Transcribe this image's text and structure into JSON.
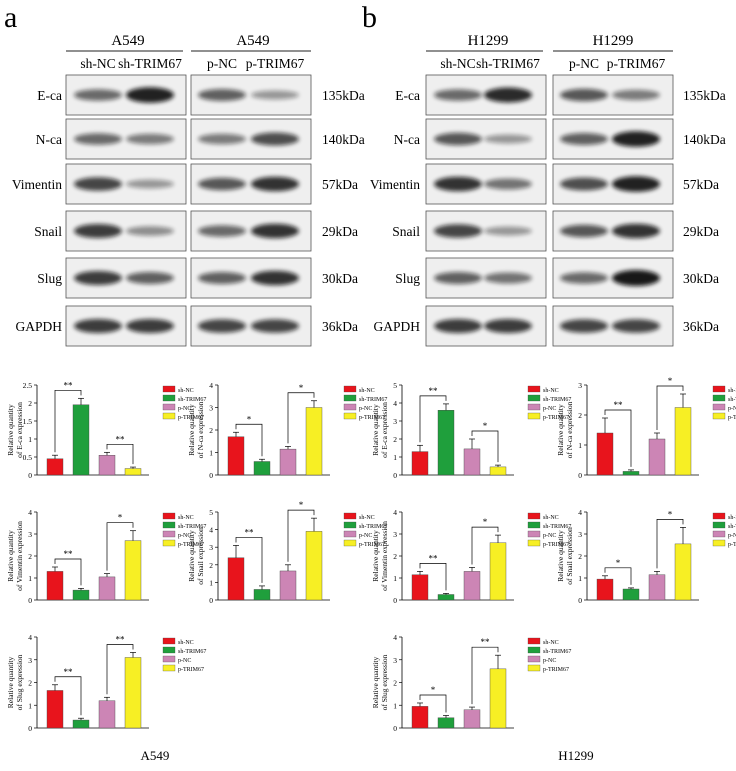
{
  "panels": [
    {
      "letter": "a",
      "cell_line": "A549",
      "groups": [
        {
          "title": "A549",
          "lanes": [
            "sh-NC",
            "sh-TRIM67"
          ]
        },
        {
          "title": "A549",
          "lanes": [
            "p-NC",
            "p-TRIM67"
          ]
        }
      ],
      "blots": [
        {
          "protein": "E-ca",
          "size": "135kDa",
          "intensities": [
            0.55,
            0.95,
            0.6,
            0.3
          ]
        },
        {
          "protein": "N-ca",
          "size": "140kDa",
          "intensities": [
            0.55,
            0.45,
            0.45,
            0.7
          ]
        },
        {
          "protein": "Vimentin",
          "size": "57kDa",
          "intensities": [
            0.75,
            0.3,
            0.65,
            0.85
          ]
        },
        {
          "protein": "Snail",
          "size": "29kDa",
          "intensities": [
            0.8,
            0.35,
            0.55,
            0.85
          ]
        },
        {
          "protein": "Slug",
          "size": "30kDa",
          "intensities": [
            0.8,
            0.6,
            0.6,
            0.85
          ]
        },
        {
          "protein": "GAPDH",
          "size": "36kDa",
          "intensities": [
            0.8,
            0.8,
            0.75,
            0.75
          ]
        }
      ]
    },
    {
      "letter": "b",
      "cell_line": "H1299",
      "groups": [
        {
          "title": "H1299",
          "lanes": [
            "sh-NC",
            "sh-TRIM67"
          ]
        },
        {
          "title": "H1299",
          "lanes": [
            "p-NC",
            "p-TRIM67"
          ]
        }
      ],
      "blots": [
        {
          "protein": "E-ca",
          "size": "135kDa",
          "intensities": [
            0.55,
            0.9,
            0.65,
            0.45
          ]
        },
        {
          "protein": "N-ca",
          "size": "140kDa",
          "intensities": [
            0.65,
            0.3,
            0.6,
            0.95
          ]
        },
        {
          "protein": "Vimentin",
          "size": "57kDa",
          "intensities": [
            0.85,
            0.5,
            0.7,
            0.95
          ]
        },
        {
          "protein": "Snail",
          "size": "29kDa",
          "intensities": [
            0.75,
            0.3,
            0.65,
            0.85
          ]
        },
        {
          "protein": "Slug",
          "size": "30kDa",
          "intensities": [
            0.6,
            0.5,
            0.55,
            1.0
          ]
        },
        {
          "protein": "GAPDH",
          "size": "36kDa",
          "intensities": [
            0.8,
            0.8,
            0.75,
            0.75
          ]
        }
      ]
    }
  ],
  "legend": [
    "sh-NC",
    "sh-TRIM67",
    "p-NC",
    "p-TRIM67"
  ],
  "colors": [
    "#e8141c",
    "#1f9f3c",
    "#cc85b5",
    "#f7ef24"
  ],
  "chart_data": [
    {
      "type": "bar",
      "panel": "a",
      "categories": [
        "sh-NC",
        "sh-TRIM67",
        "p-NC",
        "p-TRIM67"
      ],
      "values": [
        0.45,
        1.95,
        0.55,
        0.18
      ],
      "errors": [
        0.1,
        0.18,
        0.08,
        0.04
      ],
      "ylabel": "Relative quantity of E-ca expression",
      "ylim": [
        0,
        2.5
      ],
      "yticks": [
        0,
        0.5,
        1,
        1.5,
        2,
        2.5
      ],
      "sig": [
        "**",
        "**"
      ],
      "legend_position": "right"
    },
    {
      "type": "bar",
      "panel": "a",
      "categories": [
        "sh-NC",
        "sh-TRIM67",
        "p-NC",
        "p-TRIM67"
      ],
      "values": [
        1.7,
        0.6,
        1.15,
        3.0
      ],
      "errors": [
        0.2,
        0.1,
        0.12,
        0.3
      ],
      "ylabel": "Relative quantity of N-ca expression",
      "ylim": [
        0,
        4
      ],
      "yticks": [
        0,
        1,
        2,
        3,
        4
      ],
      "sig": [
        "*",
        "*"
      ],
      "legend_position": "right"
    },
    {
      "type": "bar",
      "panel": "a",
      "categories": [
        "sh-NC",
        "sh-TRIM67",
        "p-NC",
        "p-TRIM67"
      ],
      "values": [
        1.3,
        0.45,
        1.05,
        2.7
      ],
      "errors": [
        0.2,
        0.08,
        0.15,
        0.45
      ],
      "ylabel": "Relative quantity of Vimentin expression",
      "ylim": [
        0,
        4
      ],
      "yticks": [
        0,
        1,
        2,
        3,
        4
      ],
      "sig": [
        "**",
        "*"
      ],
      "legend_position": "right"
    },
    {
      "type": "bar",
      "panel": "a",
      "categories": [
        "sh-NC",
        "sh-TRIM67",
        "p-NC",
        "p-TRIM67"
      ],
      "values": [
        2.4,
        0.6,
        1.65,
        3.9
      ],
      "errors": [
        0.7,
        0.2,
        0.35,
        0.75
      ],
      "ylabel": "Relative quantity of Snail expression",
      "ylim": [
        0,
        5
      ],
      "yticks": [
        0,
        1,
        2,
        3,
        4,
        5
      ],
      "sig": [
        "**",
        "*"
      ],
      "legend_position": "right"
    },
    {
      "type": "bar",
      "panel": "a",
      "categories": [
        "sh-NC",
        "sh-TRIM67",
        "p-NC",
        "p-TRIM67"
      ],
      "values": [
        1.65,
        0.35,
        1.2,
        3.1
      ],
      "errors": [
        0.25,
        0.08,
        0.15,
        0.22
      ],
      "ylabel": "Relative quantity of Slug expression",
      "ylim": [
        0,
        4
      ],
      "yticks": [
        0,
        1,
        2,
        3,
        4
      ],
      "sig": [
        "**",
        "**"
      ],
      "legend_position": "right"
    },
    {
      "type": "bar",
      "panel": "b",
      "categories": [
        "sh-NC",
        "sh-TRIM67",
        "p-NC",
        "p-TRIM67"
      ],
      "values": [
        1.3,
        3.6,
        1.45,
        0.45
      ],
      "errors": [
        0.35,
        0.35,
        0.55,
        0.1
      ],
      "ylabel": "Relative quantity of E-ca expression",
      "ylim": [
        0,
        5
      ],
      "yticks": [
        0,
        1,
        2,
        3,
        4,
        5
      ],
      "sig": [
        "**",
        "*"
      ],
      "legend_position": "right"
    },
    {
      "type": "bar",
      "panel": "b",
      "categories": [
        "sh-NC",
        "sh-TRIM67",
        "p-NC",
        "p-TRIM67"
      ],
      "values": [
        1.4,
        0.12,
        1.2,
        2.25
      ],
      "errors": [
        0.5,
        0.05,
        0.2,
        0.45
      ],
      "ylabel": "Relative quantity of N-ca expression",
      "ylim": [
        0,
        3
      ],
      "yticks": [
        0,
        1,
        2,
        3
      ],
      "sig": [
        "**",
        "*"
      ],
      "legend_position": "right"
    },
    {
      "type": "bar",
      "panel": "b",
      "categories": [
        "sh-NC",
        "sh-TRIM67",
        "p-NC",
        "p-TRIM67"
      ],
      "values": [
        1.15,
        0.25,
        1.3,
        2.6
      ],
      "errors": [
        0.15,
        0.05,
        0.18,
        0.35
      ],
      "ylabel": "Relative quantity of Vimentin expression",
      "ylim": [
        0,
        4
      ],
      "yticks": [
        0,
        1,
        2,
        3,
        4
      ],
      "sig": [
        "**",
        "*"
      ],
      "legend_position": "right"
    },
    {
      "type": "bar",
      "panel": "b",
      "categories": [
        "sh-NC",
        "sh-TRIM67",
        "p-NC",
        "p-TRIM67"
      ],
      "values": [
        0.95,
        0.5,
        1.15,
        2.55
      ],
      "errors": [
        0.15,
        0.05,
        0.15,
        0.75
      ],
      "ylabel": "Relative quantity of Snail expression",
      "ylim": [
        0,
        4
      ],
      "yticks": [
        0,
        1,
        2,
        3,
        4
      ],
      "sig": [
        "*",
        "*"
      ],
      "legend_position": "right"
    },
    {
      "type": "bar",
      "panel": "b",
      "categories": [
        "sh-NC",
        "sh-TRIM67",
        "p-NC",
        "p-TRIM67"
      ],
      "values": [
        0.95,
        0.45,
        0.8,
        2.6
      ],
      "errors": [
        0.15,
        0.1,
        0.12,
        0.6
      ],
      "ylabel": "Relative quantity of Slug expression",
      "ylim": [
        0,
        4
      ],
      "yticks": [
        0,
        1,
        2,
        3,
        4
      ],
      "sig": [
        "*",
        "**"
      ],
      "legend_position": "right"
    }
  ]
}
